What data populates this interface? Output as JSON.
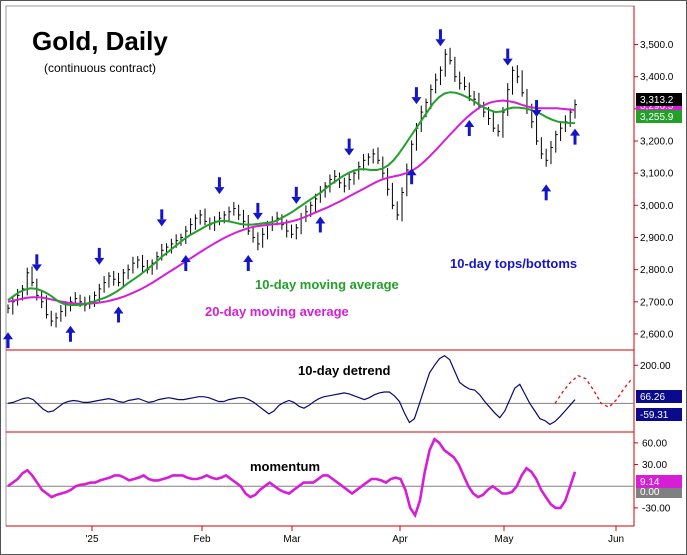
{
  "chart_data": {
    "type": "line",
    "title": "Gold, Daily",
    "subtitle": "(continuous contract)",
    "x_tick_labels": [
      "'25",
      "Feb",
      "Mar",
      "Apr",
      "May",
      "Jun"
    ],
    "price_panel": {
      "y_ticks": [
        "3,500.0",
        "3,400.0",
        "3,300.0",
        "3,200.0",
        "3,100.0",
        "3,000.0",
        "2,900.0",
        "2,800.0",
        "2,700.0",
        "2,600.0"
      ],
      "ylim": [
        2550,
        3620
      ],
      "series": [
        {
          "name": "10-day moving average",
          "color": "#22a02a"
        },
        {
          "name": "20-day moving average",
          "color": "#d61ed6"
        }
      ],
      "annotations": [
        "10-day moving average",
        "20-day moving average",
        "10-day tops/bottoms"
      ],
      "price_labels": [
        {
          "text": "3,313.2",
          "bg": "#000000",
          "fg": "#ffffff"
        },
        {
          "text": "3,296.5",
          "bg": "#d61ed6",
          "fg": "#ffffff"
        },
        {
          "text": "3,255.9",
          "bg": "#22a02a",
          "fg": "#ffffff"
        }
      ],
      "close": [
        2680,
        2700,
        2720,
        2740,
        2790,
        2760,
        2720,
        2700,
        2660,
        2640,
        2650,
        2670,
        2690,
        2700,
        2710,
        2700,
        2690,
        2700,
        2720,
        2740,
        2760,
        2780,
        2770,
        2760,
        2790,
        2800,
        2820,
        2830,
        2810,
        2800,
        2820,
        2840,
        2860,
        2870,
        2880,
        2890,
        2900,
        2920,
        2940,
        2960,
        2970,
        2950,
        2940,
        2950,
        2960,
        2970,
        2980,
        2990,
        2970,
        2950,
        2920,
        2900,
        2880,
        2910,
        2940,
        2950,
        2960,
        2940,
        2920,
        2910,
        2930,
        2960,
        2980,
        3000,
        3020,
        3040,
        3060,
        3080,
        3090,
        3070,
        3060,
        3080,
        3100,
        3120,
        3140,
        3150,
        3160,
        3140,
        3100,
        3050,
        3000,
        2970,
        3040,
        3110,
        3190,
        3240,
        3290,
        3320,
        3360,
        3390,
        3420,
        3470,
        3450,
        3400,
        3380,
        3370,
        3340,
        3330,
        3310,
        3290,
        3270,
        3240,
        3230,
        3290,
        3360,
        3420,
        3400,
        3350,
        3300,
        3260,
        3200,
        3160,
        3140,
        3180,
        3220,
        3240,
        3260,
        3290,
        3313.2
      ],
      "ma10": [
        2705,
        2718,
        2730,
        2738,
        2742,
        2740,
        2734,
        2725,
        2713,
        2700,
        2692,
        2690,
        2690,
        2691,
        2695,
        2700,
        2706,
        2712,
        2720,
        2730,
        2742,
        2756,
        2768,
        2780,
        2794,
        2808,
        2822,
        2838,
        2852,
        2866,
        2880,
        2894,
        2906,
        2916,
        2926,
        2936,
        2944,
        2950,
        2952,
        2950,
        2946,
        2942,
        2940,
        2940,
        2942,
        2944,
        2946,
        2950,
        2958,
        2968,
        2978,
        2990,
        3002,
        3014,
        3026,
        3038,
        3052,
        3066,
        3078,
        3090,
        3100,
        3108,
        3112,
        3112,
        3110,
        3110,
        3114,
        3124,
        3140,
        3162,
        3188,
        3214,
        3240,
        3266,
        3292,
        3318,
        3336,
        3348,
        3352,
        3350,
        3344,
        3336,
        3326,
        3314,
        3304,
        3296,
        3290,
        3292,
        3300,
        3304,
        3304,
        3302,
        3298,
        3292,
        3284,
        3274,
        3266,
        3260,
        3258,
        3256,
        3255.9
      ],
      "ma20": [
        2700,
        2704,
        2708,
        2712,
        2714,
        2714,
        2712,
        2708,
        2704,
        2700,
        2697,
        2695,
        2694,
        2694,
        2695,
        2697,
        2700,
        2704,
        2709,
        2715,
        2722,
        2730,
        2739,
        2749,
        2760,
        2772,
        2784,
        2796,
        2808,
        2820,
        2832,
        2844,
        2856,
        2868,
        2879,
        2890,
        2900,
        2909,
        2917,
        2924,
        2930,
        2934,
        2937,
        2939,
        2941,
        2943,
        2946,
        2950,
        2955,
        2962,
        2970,
        2978,
        2986,
        2994,
        3003,
        3012,
        3022,
        3032,
        3042,
        3052,
        3062,
        3072,
        3080,
        3086,
        3090,
        3094,
        3100,
        3108,
        3120,
        3136,
        3154,
        3174,
        3194,
        3214,
        3234,
        3254,
        3272,
        3288,
        3302,
        3312,
        3320,
        3324,
        3326,
        3324,
        3320,
        3314,
        3308,
        3304,
        3302,
        3302,
        3302,
        3302,
        3300,
        3298,
        3296.5
      ]
    },
    "detrend_panel": {
      "label": "10-day detrend",
      "y_ticks": [
        "200.00"
      ],
      "ylim": [
        -150,
        280
      ],
      "values": [
        0,
        5,
        15,
        25,
        30,
        20,
        -5,
        -30,
        -45,
        -40,
        -20,
        0,
        10,
        15,
        12,
        5,
        5,
        10,
        15,
        20,
        25,
        20,
        10,
        5,
        15,
        20,
        25,
        15,
        5,
        10,
        20,
        25,
        30,
        25,
        20,
        20,
        25,
        30,
        35,
        35,
        30,
        20,
        10,
        10,
        20,
        25,
        30,
        30,
        20,
        5,
        -15,
        -35,
        -55,
        -40,
        -10,
        5,
        15,
        5,
        -15,
        -25,
        -10,
        10,
        25,
        35,
        40,
        45,
        50,
        55,
        50,
        40,
        30,
        20,
        30,
        45,
        55,
        60,
        60,
        40,
        10,
        -50,
        -100,
        -80,
        0,
        80,
        160,
        200,
        235,
        250,
        230,
        170,
        110,
        90,
        75,
        70,
        45,
        10,
        -20,
        -50,
        -75,
        -40,
        20,
        80,
        100,
        50,
        0,
        -40,
        -80,
        -90,
        -110,
        -95,
        -70,
        -40,
        -10,
        20
      ],
      "forecast": [
        0,
        60,
        110,
        145,
        130,
        70,
        0,
        -20,
        20,
        80,
        130
      ],
      "badges": [
        {
          "text": "66.26",
          "bg": "#0a0a8c",
          "fg": "#ffffff"
        },
        {
          "text": "-59.31",
          "bg": "#0a0a8c",
          "fg": "#ffffff"
        }
      ]
    },
    "momentum_panel": {
      "label": "momentum",
      "y_ticks": [
        "60.00",
        "30.00",
        "-30.00"
      ],
      "ylim": [
        -55,
        75
      ],
      "values": [
        0,
        5,
        10,
        18,
        22,
        15,
        5,
        -5,
        -10,
        -15,
        -12,
        -10,
        -8,
        -5,
        0,
        2,
        3,
        5,
        5,
        8,
        10,
        12,
        15,
        15,
        12,
        8,
        10,
        12,
        15,
        10,
        8,
        8,
        10,
        12,
        15,
        15,
        15,
        12,
        10,
        10,
        12,
        15,
        12,
        10,
        12,
        15,
        10,
        5,
        0,
        -10,
        -15,
        -12,
        -5,
        0,
        5,
        0,
        -5,
        -8,
        -10,
        -5,
        0,
        5,
        5,
        5,
        10,
        15,
        15,
        10,
        5,
        0,
        -5,
        -10,
        -5,
        0,
        5,
        10,
        10,
        8,
        5,
        10,
        12,
        10,
        -5,
        -30,
        -40,
        -20,
        20,
        50,
        65,
        60,
        50,
        45,
        40,
        30,
        15,
        0,
        -10,
        -15,
        -12,
        -5,
        0,
        -5,
        -10,
        -10,
        -8,
        0,
        15,
        25,
        20,
        10,
        -5,
        -15,
        -25,
        -30,
        -30,
        -20,
        0,
        20
      ],
      "badges": [
        {
          "text": "9.14",
          "bg": "#d61ed6",
          "fg": "#ffffff"
        },
        {
          "text": "0.00",
          "bg": "#808080",
          "fg": "#ffffff"
        }
      ]
    },
    "cycle_markers": {
      "up_arrow_bars": [
        0,
        13,
        23,
        37,
        50,
        65,
        84,
        96,
        112,
        119
      ],
      "down_arrow_bars": [
        6,
        19,
        32,
        44,
        52,
        60,
        71,
        85,
        90,
        104,
        110
      ],
      "color": "#1515c8"
    },
    "colors": {
      "price_bars": "#000000",
      "ma10": "#22a02a",
      "ma20": "#d61ed6",
      "detrend": "#0a0a6e",
      "detrend_forecast": "#e01010",
      "momentum": "#d61ed6",
      "axis": "#d00000",
      "zero_line": "#808080",
      "tops_bottoms_label": "#1515c8"
    }
  }
}
